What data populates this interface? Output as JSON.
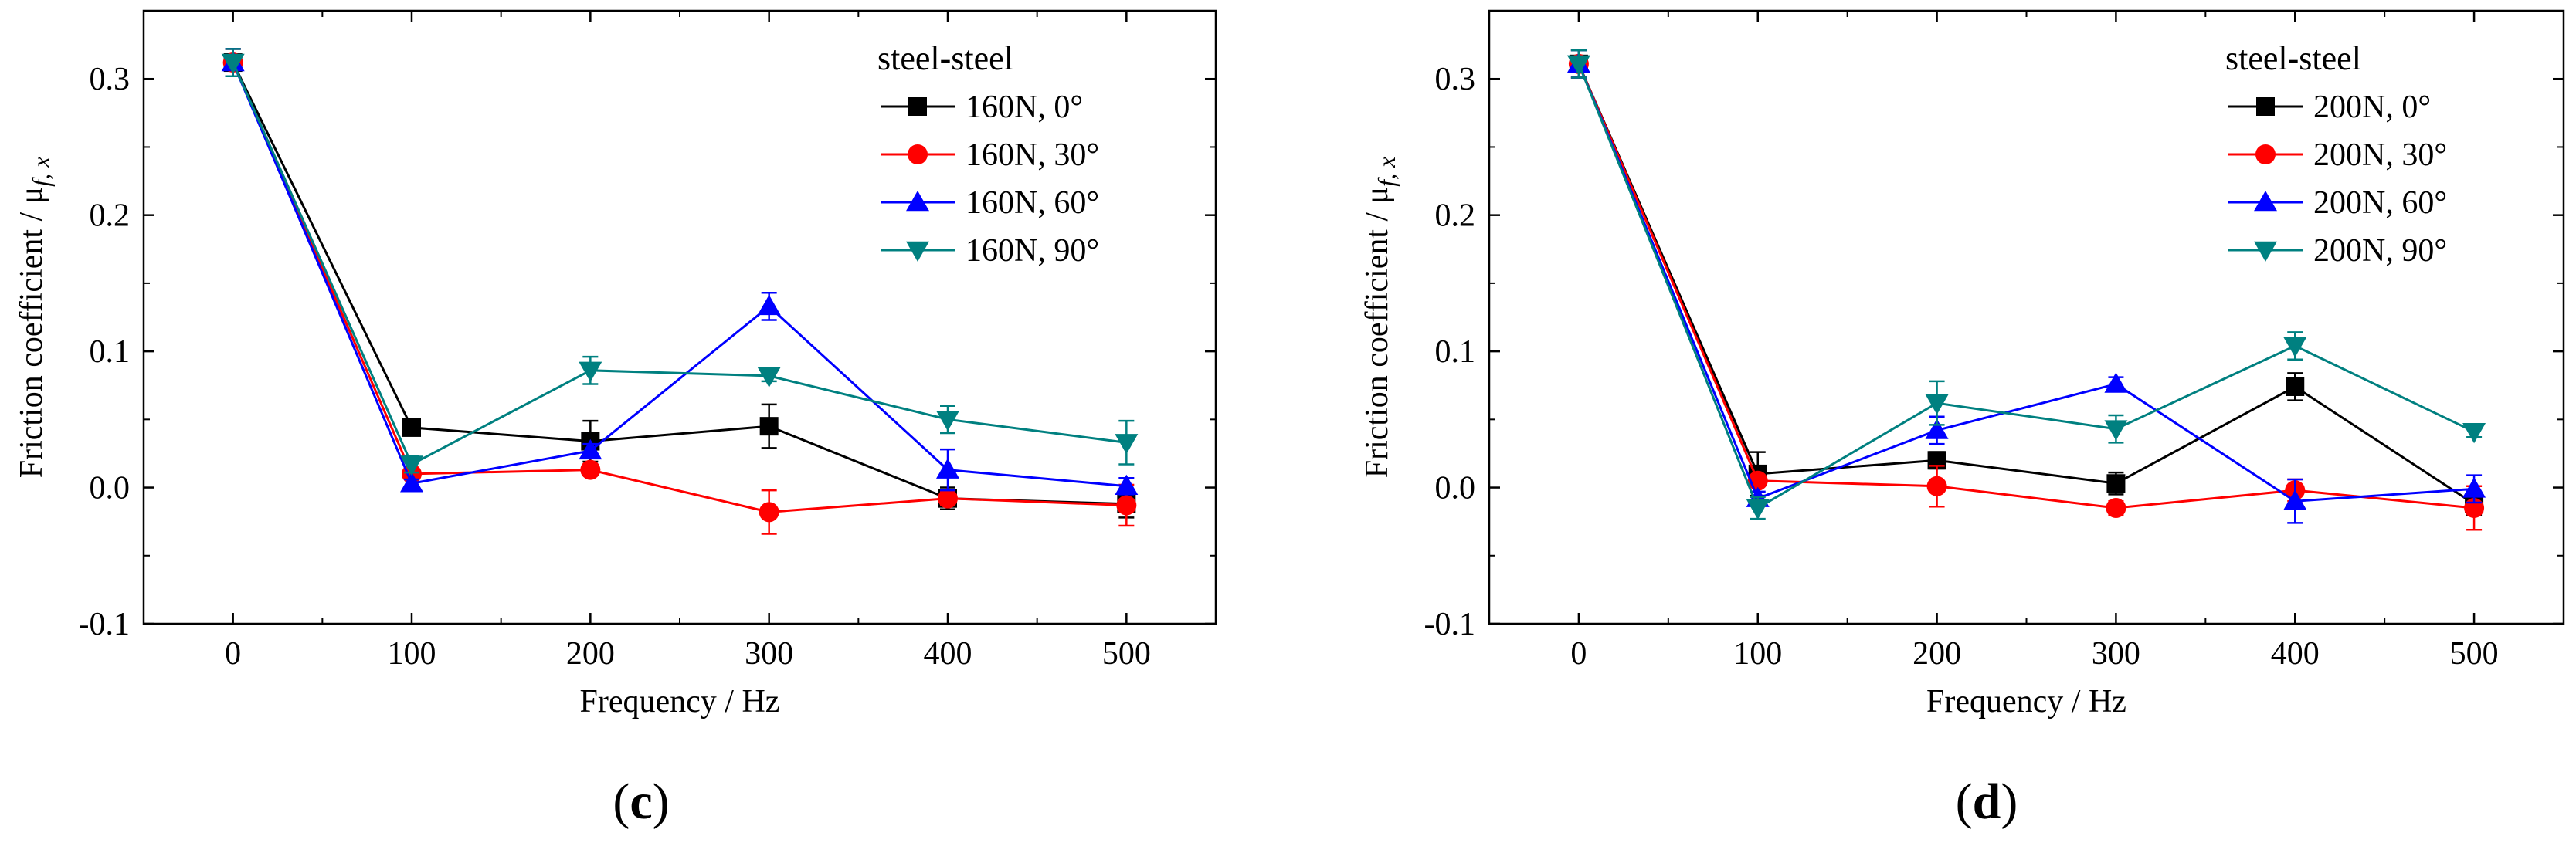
{
  "chart_data": [
    {
      "type": "line",
      "panel_label": "c",
      "xlabel": "Frequency / Hz",
      "ylabel_prefix": "Friction coefficient / μ",
      "ylabel_sub": "f, x",
      "xlim": [
        -50,
        550
      ],
      "ylim": [
        -0.1,
        0.35
      ],
      "xticks": [
        0,
        100,
        200,
        300,
        400,
        500
      ],
      "xtick_labels": [
        "0",
        "100",
        "200",
        "300",
        "400",
        "500"
      ],
      "yticks": [
        -0.1,
        0.0,
        0.1,
        0.2,
        0.3
      ],
      "ytick_labels": [
        "-0.1",
        "0.0",
        "0.1",
        "0.2",
        "0.3"
      ],
      "legend_title": "steel-steel",
      "legend_position": "top-right",
      "x": [
        0,
        100,
        200,
        300,
        400,
        500
      ],
      "series": [
        {
          "name": "160N, 0°",
          "color": "#000000",
          "marker": "square",
          "values": [
            0.312,
            0.044,
            0.034,
            0.045,
            -0.008,
            -0.012
          ],
          "errors": [
            0.01,
            0.004,
            0.015,
            0.016,
            0.008,
            0.01
          ]
        },
        {
          "name": "160N, 30°",
          "color": "#ff0000",
          "marker": "circle",
          "values": [
            0.312,
            0.01,
            0.013,
            -0.018,
            -0.008,
            -0.013
          ],
          "errors": [
            0.01,
            0.004,
            0.004,
            0.016,
            0.005,
            0.015
          ]
        },
        {
          "name": "160N, 60°",
          "color": "#0000ff",
          "marker": "triangle-up",
          "values": [
            0.312,
            0.003,
            0.027,
            0.133,
            0.013,
            0.001
          ],
          "errors": [
            0.01,
            0.003,
            0.005,
            0.01,
            0.015,
            0.006
          ]
        },
        {
          "name": "160N, 90°",
          "color": "#008080",
          "marker": "triangle-down",
          "values": [
            0.312,
            0.017,
            0.086,
            0.082,
            0.05,
            0.033
          ],
          "errors": [
            0.01,
            0.006,
            0.01,
            0.004,
            0.01,
            0.016
          ]
        }
      ]
    },
    {
      "type": "line",
      "panel_label": "d",
      "xlabel": "Frequency / Hz",
      "ylabel_prefix": "Friction coefficient / μ",
      "ylabel_sub": "f, x",
      "xlim": [
        -50,
        550
      ],
      "ylim": [
        -0.1,
        0.35
      ],
      "xticks": [
        0,
        100,
        200,
        300,
        400,
        500
      ],
      "xtick_labels": [
        "0",
        "100",
        "200",
        "300",
        "400",
        "500"
      ],
      "yticks": [
        -0.1,
        0.0,
        0.1,
        0.2,
        0.3
      ],
      "ytick_labels": [
        "-0.1",
        "0.0",
        "0.1",
        "0.2",
        "0.3"
      ],
      "legend_title": "steel-steel",
      "legend_position": "top-right",
      "x": [
        0,
        100,
        200,
        300,
        400,
        500
      ],
      "series": [
        {
          "name": "200N, 0°",
          "color": "#000000",
          "marker": "square",
          "values": [
            0.311,
            0.01,
            0.02,
            0.003,
            0.074,
            -0.012
          ],
          "errors": [
            0.01,
            0.016,
            0.006,
            0.008,
            0.01,
            0.008
          ]
        },
        {
          "name": "200N, 30°",
          "color": "#ff0000",
          "marker": "circle",
          "values": [
            0.311,
            0.005,
            0.001,
            -0.015,
            -0.002,
            -0.015
          ],
          "errors": [
            0.01,
            0.004,
            0.015,
            0.005,
            0.008,
            0.016
          ]
        },
        {
          "name": "200N, 60°",
          "color": "#0000ff",
          "marker": "triangle-up",
          "values": [
            0.311,
            -0.008,
            0.042,
            0.076,
            -0.01,
            -0.001
          ],
          "errors": [
            0.01,
            0.005,
            0.01,
            0.005,
            0.016,
            0.01
          ]
        },
        {
          "name": "200N, 90°",
          "color": "#008080",
          "marker": "triangle-down",
          "values": [
            0.311,
            -0.015,
            0.062,
            0.043,
            0.104,
            0.041
          ],
          "errors": [
            0.01,
            0.008,
            0.016,
            0.01,
            0.01,
            0.004
          ]
        }
      ]
    }
  ]
}
